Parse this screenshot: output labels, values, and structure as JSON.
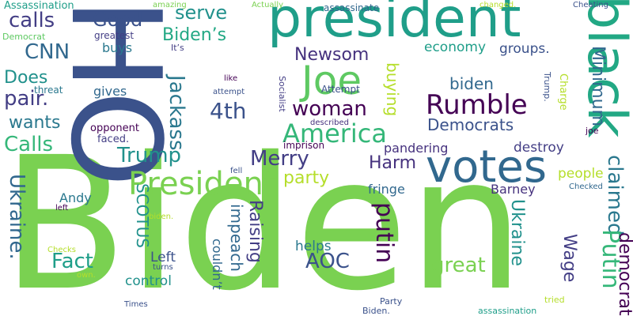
{
  "words": [
    {
      "text": "Biden",
      "color": "#7AD151",
      "rot": 0
    },
    {
      "text": "HO",
      "color": "#3B528B",
      "rot": 90
    },
    {
      "text": "president",
      "color": "#1F9E89",
      "rot": 0
    },
    {
      "text": "black",
      "color": "#22A884",
      "rot": 90
    },
    {
      "text": "Joe",
      "color": "#5EC962",
      "rot": 0
    },
    {
      "text": "votes",
      "color": "#31688E",
      "rot": 0
    },
    {
      "text": "President",
      "color": "#7AD151",
      "rot": 0
    },
    {
      "text": "Rumble",
      "color": "#440154",
      "rot": 0
    },
    {
      "text": "America",
      "color": "#35B779",
      "rot": 0
    },
    {
      "text": "4th",
      "color": "#3B528B",
      "rot": 0
    },
    {
      "text": "Merry",
      "color": "#433E85",
      "rot": 0
    },
    {
      "text": "Trump",
      "color": "#21918C",
      "rot": 0
    },
    {
      "text": "woman",
      "color": "#440154",
      "rot": 0
    },
    {
      "text": "Democrats",
      "color": "#3B528B",
      "rot": 0
    },
    {
      "text": "biden",
      "color": "#31688E",
      "rot": 0
    },
    {
      "text": "Newsom",
      "color": "#46327E",
      "rot": 0
    },
    {
      "text": "Biden’s",
      "color": "#22A884",
      "rot": 0
    },
    {
      "text": "serve",
      "color": "#21918C",
      "rot": 0
    },
    {
      "text": "Good",
      "color": "#3B528B",
      "rot": 0
    },
    {
      "text": "calls",
      "color": "#433E85",
      "rot": 0
    },
    {
      "text": "CNN",
      "color": "#31688E",
      "rot": 0
    },
    {
      "text": "Does",
      "color": "#21918C",
      "rot": 0
    },
    {
      "text": "pair.",
      "color": "#433E85",
      "rot": 0
    },
    {
      "text": "wants",
      "color": "#2A788E",
      "rot": 0
    },
    {
      "text": "Calls",
      "color": "#35B779",
      "rot": 0
    },
    {
      "text": "Jackass",
      "color": "#2A788E",
      "rot": 90
    },
    {
      "text": "Harm",
      "color": "#46327E",
      "rot": 0
    },
    {
      "text": "claimed",
      "color": "#2A788E",
      "rot": 90
    },
    {
      "text": "party",
      "color": "#B5DE2B",
      "rot": 0
    },
    {
      "text": "putin",
      "color": "#440154",
      "rot": 90
    },
    {
      "text": "great",
      "color": "#7AD151",
      "rot": 0
    },
    {
      "text": "AOC",
      "color": "#3B528B",
      "rot": 0
    },
    {
      "text": "Raising",
      "color": "#433E85",
      "rot": 90
    },
    {
      "text": "impeach",
      "color": "#31688E",
      "rot": 90
    },
    {
      "text": "SCOTUS",
      "color": "#21918C",
      "rot": 90
    },
    {
      "text": "Fact",
      "color": "#1F9E89",
      "rot": 0
    },
    {
      "text": "Ukraine.",
      "color": "#31688E",
      "rot": 90
    },
    {
      "text": "Putin",
      "color": "#35B779",
      "rot": 90
    },
    {
      "text": "Ukraine",
      "color": "#21918C",
      "rot": 90
    },
    {
      "text": "Wage",
      "color": "#433E85",
      "rot": 90
    },
    {
      "text": "democrat",
      "color": "#440154",
      "rot": 90
    },
    {
      "text": "Minimum",
      "color": "#31688E",
      "rot": 90
    },
    {
      "text": "buying",
      "color": "#B5DE2B",
      "rot": 90
    },
    {
      "text": "destroy",
      "color": "#433E85",
      "rot": 0
    },
    {
      "text": "pandering",
      "color": "#46327E",
      "rot": 0
    },
    {
      "text": "people",
      "color": "#B5DE2B",
      "rot": 0
    },
    {
      "text": "Barney",
      "color": "#46327E",
      "rot": 0
    },
    {
      "text": "fringe",
      "color": "#31688E",
      "rot": 0
    },
    {
      "text": "economy",
      "color": "#1F9E89",
      "rot": 0
    },
    {
      "text": "groups.",
      "color": "#3B528B",
      "rot": 0
    },
    {
      "text": "Left",
      "color": "#3B528B",
      "rot": 0
    },
    {
      "text": "control",
      "color": "#21918C",
      "rot": 0
    },
    {
      "text": "helps",
      "color": "#2A788E",
      "rot": 0
    },
    {
      "text": "couldn’t",
      "color": "#31688E",
      "rot": 90
    },
    {
      "text": "Andy",
      "color": "#2A788E",
      "rot": 0
    },
    {
      "text": "gives",
      "color": "#31688E",
      "rot": 0
    },
    {
      "text": "buys",
      "color": "#2A788E",
      "rot": 0
    },
    {
      "text": "opponent",
      "color": "#440154",
      "rot": 0
    },
    {
      "text": "faced.",
      "color": "#433E85",
      "rot": 0
    },
    {
      "text": "Assassination",
      "color": "#1F9E89",
      "rot": 0
    },
    {
      "text": "Democrat",
      "color": "#5EC962",
      "rot": 0
    },
    {
      "text": "greatest",
      "color": "#433E85",
      "rot": 0
    },
    {
      "text": "threat",
      "color": "#2A788E",
      "rot": 0
    },
    {
      "text": "amazing",
      "color": "#7AD151",
      "rot": 0
    },
    {
      "text": "Actually",
      "color": "#7AD151",
      "rot": 0
    },
    {
      "text": "assassinate",
      "color": "#31688E",
      "rot": 0
    },
    {
      "text": "changed.",
      "color": "#B5DE2B",
      "rot": 0
    },
    {
      "text": "Cheating",
      "color": "#3B528B",
      "rot": 0
    },
    {
      "text": "It’s",
      "color": "#433E85",
      "rot": 0
    },
    {
      "text": "Attempt",
      "color": "#3B528B",
      "rot": 0
    },
    {
      "text": "like",
      "color": "#440154",
      "rot": 0
    },
    {
      "text": "attempt",
      "color": "#3B528B",
      "rot": 0
    },
    {
      "text": "Socialist",
      "color": "#433E85",
      "rot": 90
    },
    {
      "text": "described",
      "color": "#46327E",
      "rot": 0
    },
    {
      "text": "imprison",
      "color": "#440154",
      "rot": 0
    },
    {
      "text": "Trump.",
      "color": "#3B528B",
      "rot": 90
    },
    {
      "text": "Charge",
      "color": "#B5DE2B",
      "rot": 90
    },
    {
      "text": "joe",
      "color": "#440154",
      "rot": 0
    },
    {
      "text": "Checked",
      "color": "#31688E",
      "rot": 0
    },
    {
      "text": "fell",
      "color": "#3B528B",
      "rot": 0
    },
    {
      "text": "left",
      "color": "#440154",
      "rot": 0
    },
    {
      "text": "biden.",
      "color": "#B5DE2B",
      "rot": 0
    },
    {
      "text": "Checks",
      "color": "#B5DE2B",
      "rot": 0
    },
    {
      "text": "turns",
      "color": "#3B528B",
      "rot": 0
    },
    {
      "text": "own.",
      "color": "#B5DE2B",
      "rot": 0
    },
    {
      "text": "Times",
      "color": "#3B528B",
      "rot": 0
    },
    {
      "text": "Party",
      "color": "#3B528B",
      "rot": 0
    },
    {
      "text": "Biden.",
      "color": "#3B528B",
      "rot": 0
    },
    {
      "text": "tried",
      "color": "#B5DE2B",
      "rot": 0
    },
    {
      "text": "assassination",
      "color": "#1F9E89",
      "rot": 0
    }
  ]
}
